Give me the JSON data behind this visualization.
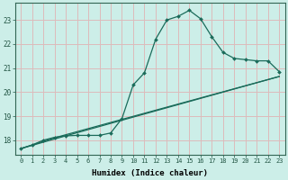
{
  "xlabel": "Humidex (Indice chaleur)",
  "bg_color": "#cceee8",
  "grid_color": "#ddbbbb",
  "line_color": "#1a6b5a",
  "xlim": [
    -0.5,
    23.5
  ],
  "ylim": [
    17.4,
    23.7
  ],
  "xticks": [
    0,
    1,
    2,
    3,
    4,
    5,
    6,
    7,
    8,
    9,
    10,
    11,
    12,
    13,
    14,
    15,
    16,
    17,
    18,
    19,
    20,
    21,
    22,
    23
  ],
  "yticks": [
    18,
    19,
    20,
    21,
    22,
    23
  ],
  "line1_x": [
    0,
    1,
    2,
    3,
    4,
    5,
    6,
    7,
    8,
    9,
    10,
    11,
    12,
    13,
    14,
    15,
    16,
    17,
    18,
    19,
    20,
    21,
    22,
    23
  ],
  "line1_y": [
    17.65,
    17.8,
    18.0,
    18.12,
    18.18,
    18.2,
    18.2,
    18.2,
    18.3,
    18.9,
    20.3,
    20.8,
    22.2,
    23.0,
    23.15,
    23.4,
    23.05,
    22.3,
    21.65,
    21.4,
    21.35,
    21.3,
    21.3,
    20.85
  ],
  "line2_x": [
    0,
    3,
    23
  ],
  "line2_y": [
    17.65,
    18.1,
    20.65
  ],
  "line3_x": [
    0,
    3,
    23
  ],
  "line3_y": [
    17.65,
    18.05,
    20.65
  ]
}
